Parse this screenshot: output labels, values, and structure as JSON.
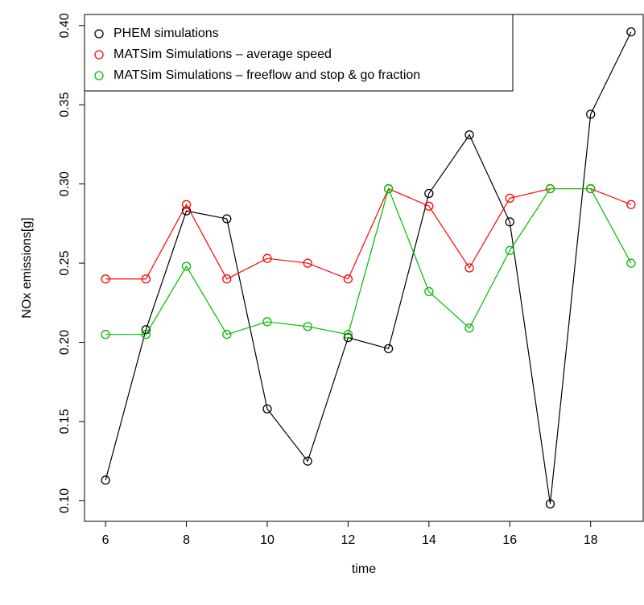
{
  "chart_data": {
    "type": "line",
    "x_label": "time",
    "y_label": "NOx emissions[g]",
    "x": [
      6,
      7,
      8,
      9,
      10,
      11,
      12,
      13,
      14,
      15,
      16,
      17,
      18,
      19
    ],
    "series": [
      {
        "name": "PHEM simulations",
        "color": "#000000",
        "values": [
          0.113,
          0.208,
          0.283,
          0.278,
          0.158,
          0.125,
          0.203,
          0.196,
          0.294,
          0.331,
          0.276,
          0.098,
          0.344,
          0.396
        ]
      },
      {
        "name": "MATSim Simulations – average speed",
        "color": "#ff0000",
        "values": [
          0.24,
          0.24,
          0.287,
          0.24,
          0.253,
          0.25,
          0.24,
          0.297,
          0.286,
          0.247,
          0.291,
          0.297,
          0.297,
          0.287
        ]
      },
      {
        "name": "MATSim Simulations – freeflow and stop & go fraction",
        "color": "#00bb00",
        "values": [
          0.205,
          0.205,
          0.248,
          0.205,
          0.213,
          0.21,
          0.205,
          0.297,
          0.232,
          0.209,
          0.258,
          0.297,
          0.297,
          0.25
        ]
      }
    ],
    "xlim": [
      5.48,
      19.3
    ],
    "ylim": [
      0.087,
      0.407
    ],
    "xticks": [
      6,
      8,
      10,
      12,
      14,
      16,
      18
    ],
    "yticks": [
      {
        "value": 0.1,
        "label": "0.10"
      },
      {
        "value": 0.15,
        "label": "0.15"
      },
      {
        "value": 0.2,
        "label": "0.20"
      },
      {
        "value": 0.25,
        "label": "0.25"
      },
      {
        "value": 0.3,
        "label": "0.30"
      },
      {
        "value": 0.35,
        "label": "0.35"
      },
      {
        "value": 0.4,
        "label": "0.40"
      }
    ],
    "legend": "topleft",
    "markers": "open-circle",
    "grid": false
  }
}
